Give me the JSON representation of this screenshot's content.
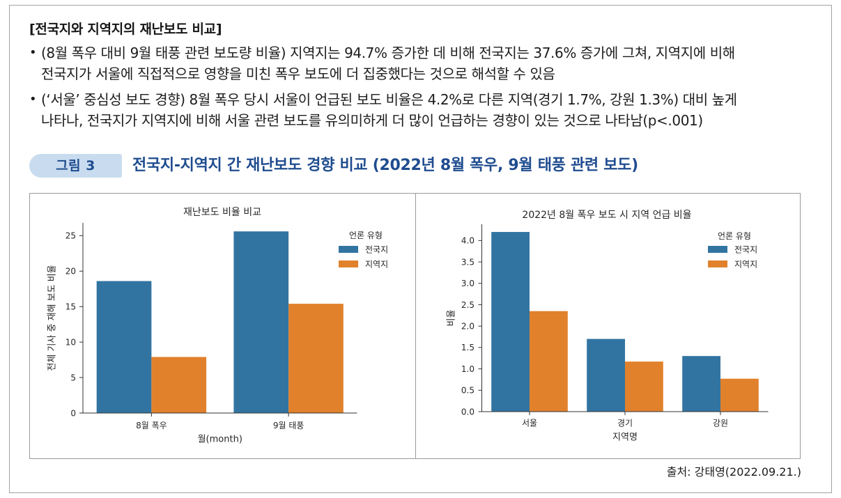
{
  "section": {
    "title": "[전국지와 지역지의 재난보도 비교]"
  },
  "bullets": [
    {
      "marker": "•",
      "lines": [
        "(8월 폭우 대비 9월 태풍 관련 보도량 비율) 지역지는 94.7% 증가한 데 비해 전국지는 37.6% 증가에 그쳐, 지역지에 비해",
        "전국지가 서울에 직접적으로 영향을 미친 폭우 보도에 더 집중했다는 것으로 해석할 수 있음"
      ]
    },
    {
      "marker": "•",
      "lines": [
        "(‘서울’ 중심성 보도 경향) 8월 폭우 당시 서울이 언급된 보도 비율은 4.2%로 다른 지역(경기 1.7%, 강원 1.3%) 대비 높게",
        "나타나, 전국지가 지역지에 비해 서울 관련 보도를 유의미하게 더 많이 언급하는 경향이 있는 것으로 나타남(p<.001)"
      ]
    }
  ],
  "figure": {
    "label": "그림 3",
    "title": "전국지-지역지 간 재난보도 경향 비교 (2022년 8월 폭우, 9월 태풍 관련 보도)",
    "source": "출처: 강태영(2022.09.21.)"
  },
  "chart_data": [
    {
      "type": "bar",
      "title": "재난보도 비율 비교",
      "xlabel": "월(month)",
      "ylabel": "전체 기사 중 재해 보도 비율",
      "categories": [
        "8월 폭우",
        "9월 태풍"
      ],
      "series": [
        {
          "name": "전국지",
          "color": "#3274a1",
          "values": [
            18.6,
            25.6
          ]
        },
        {
          "name": "지역지",
          "color": "#e1812c",
          "values": [
            7.9,
            15.4
          ]
        }
      ],
      "ylim": [
        0,
        26.8
      ],
      "yticks": [
        0,
        5,
        10,
        15,
        20,
        25
      ],
      "ytick_labels": [
        "0",
        "5",
        "10",
        "15",
        "20",
        "25"
      ],
      "legend": {
        "title": "언론 유형",
        "position": "upper-right"
      },
      "grid": false
    },
    {
      "type": "bar",
      "title": "2022년 8월 폭우 보도 시 지역 언급 비율",
      "xlabel": "지역명",
      "ylabel": "비율",
      "categories": [
        "서울",
        "경기",
        "강원"
      ],
      "series": [
        {
          "name": "전국지",
          "color": "#3274a1",
          "values": [
            4.2,
            1.7,
            1.3
          ]
        },
        {
          "name": "지역지",
          "color": "#e1812c",
          "values": [
            2.35,
            1.17,
            0.77
          ]
        }
      ],
      "ylim": [
        0,
        4.38
      ],
      "yticks": [
        0,
        0.5,
        1,
        1.5,
        2,
        2.5,
        3,
        3.5,
        4
      ],
      "ytick_labels": [
        "0.0",
        "0.5",
        "1.0",
        "1.5",
        "2.0",
        "2.5",
        "3.0",
        "3.5",
        "4.0"
      ],
      "legend": {
        "title": "언론 유형",
        "position": "upper-right"
      },
      "grid": false
    }
  ]
}
